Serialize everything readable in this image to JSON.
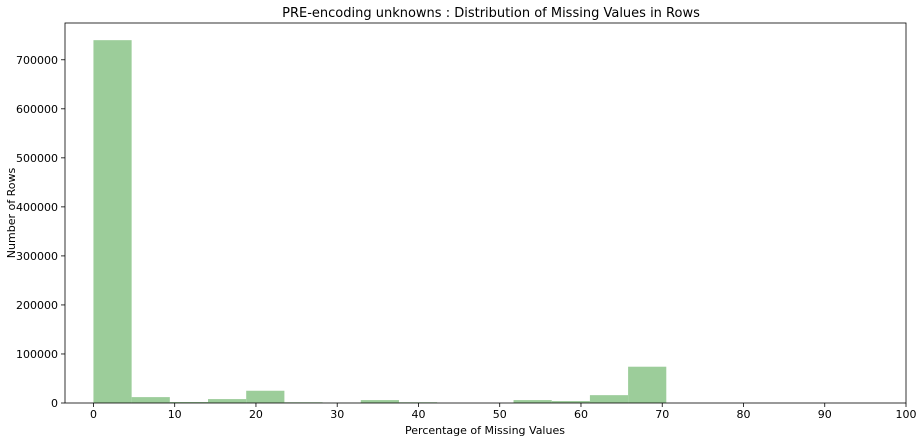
{
  "chart_data": {
    "type": "bar",
    "title": "PRE-encoding unknowns : Distribution of Missing Values in Rows",
    "xlabel": "Percentage of Missing Values",
    "ylabel": "Number of Rows",
    "xlim": [
      -3.5,
      100
    ],
    "ylim": [
      0,
      775000
    ],
    "grid": false,
    "color": "#9ccd9a",
    "x_ticks": [
      0,
      10,
      20,
      30,
      40,
      50,
      60,
      70,
      80,
      90,
      100
    ],
    "y_ticks": [
      0,
      100000,
      200000,
      300000,
      400000,
      500000,
      600000,
      700000
    ],
    "bins": [
      {
        "x0": 0,
        "x1": 4.7,
        "value": 740000
      },
      {
        "x0": 4.7,
        "x1": 9.4,
        "value": 12000
      },
      {
        "x0": 9.4,
        "x1": 14.1,
        "value": 2000
      },
      {
        "x0": 14.1,
        "x1": 18.8,
        "value": 8000
      },
      {
        "x0": 18.8,
        "x1": 23.5,
        "value": 25000
      },
      {
        "x0": 23.5,
        "x1": 28.2,
        "value": 1500
      },
      {
        "x0": 28.2,
        "x1": 32.9,
        "value": 500
      },
      {
        "x0": 32.9,
        "x1": 37.6,
        "value": 6000
      },
      {
        "x0": 37.6,
        "x1": 42.3,
        "value": 1500
      },
      {
        "x0": 42.3,
        "x1": 47.0,
        "value": 0
      },
      {
        "x0": 47.0,
        "x1": 51.7,
        "value": 0
      },
      {
        "x0": 51.7,
        "x1": 56.4,
        "value": 6000
      },
      {
        "x0": 56.4,
        "x1": 61.1,
        "value": 4000
      },
      {
        "x0": 61.1,
        "x1": 65.8,
        "value": 16000
      },
      {
        "x0": 65.8,
        "x1": 70.5,
        "value": 74000
      }
    ]
  }
}
